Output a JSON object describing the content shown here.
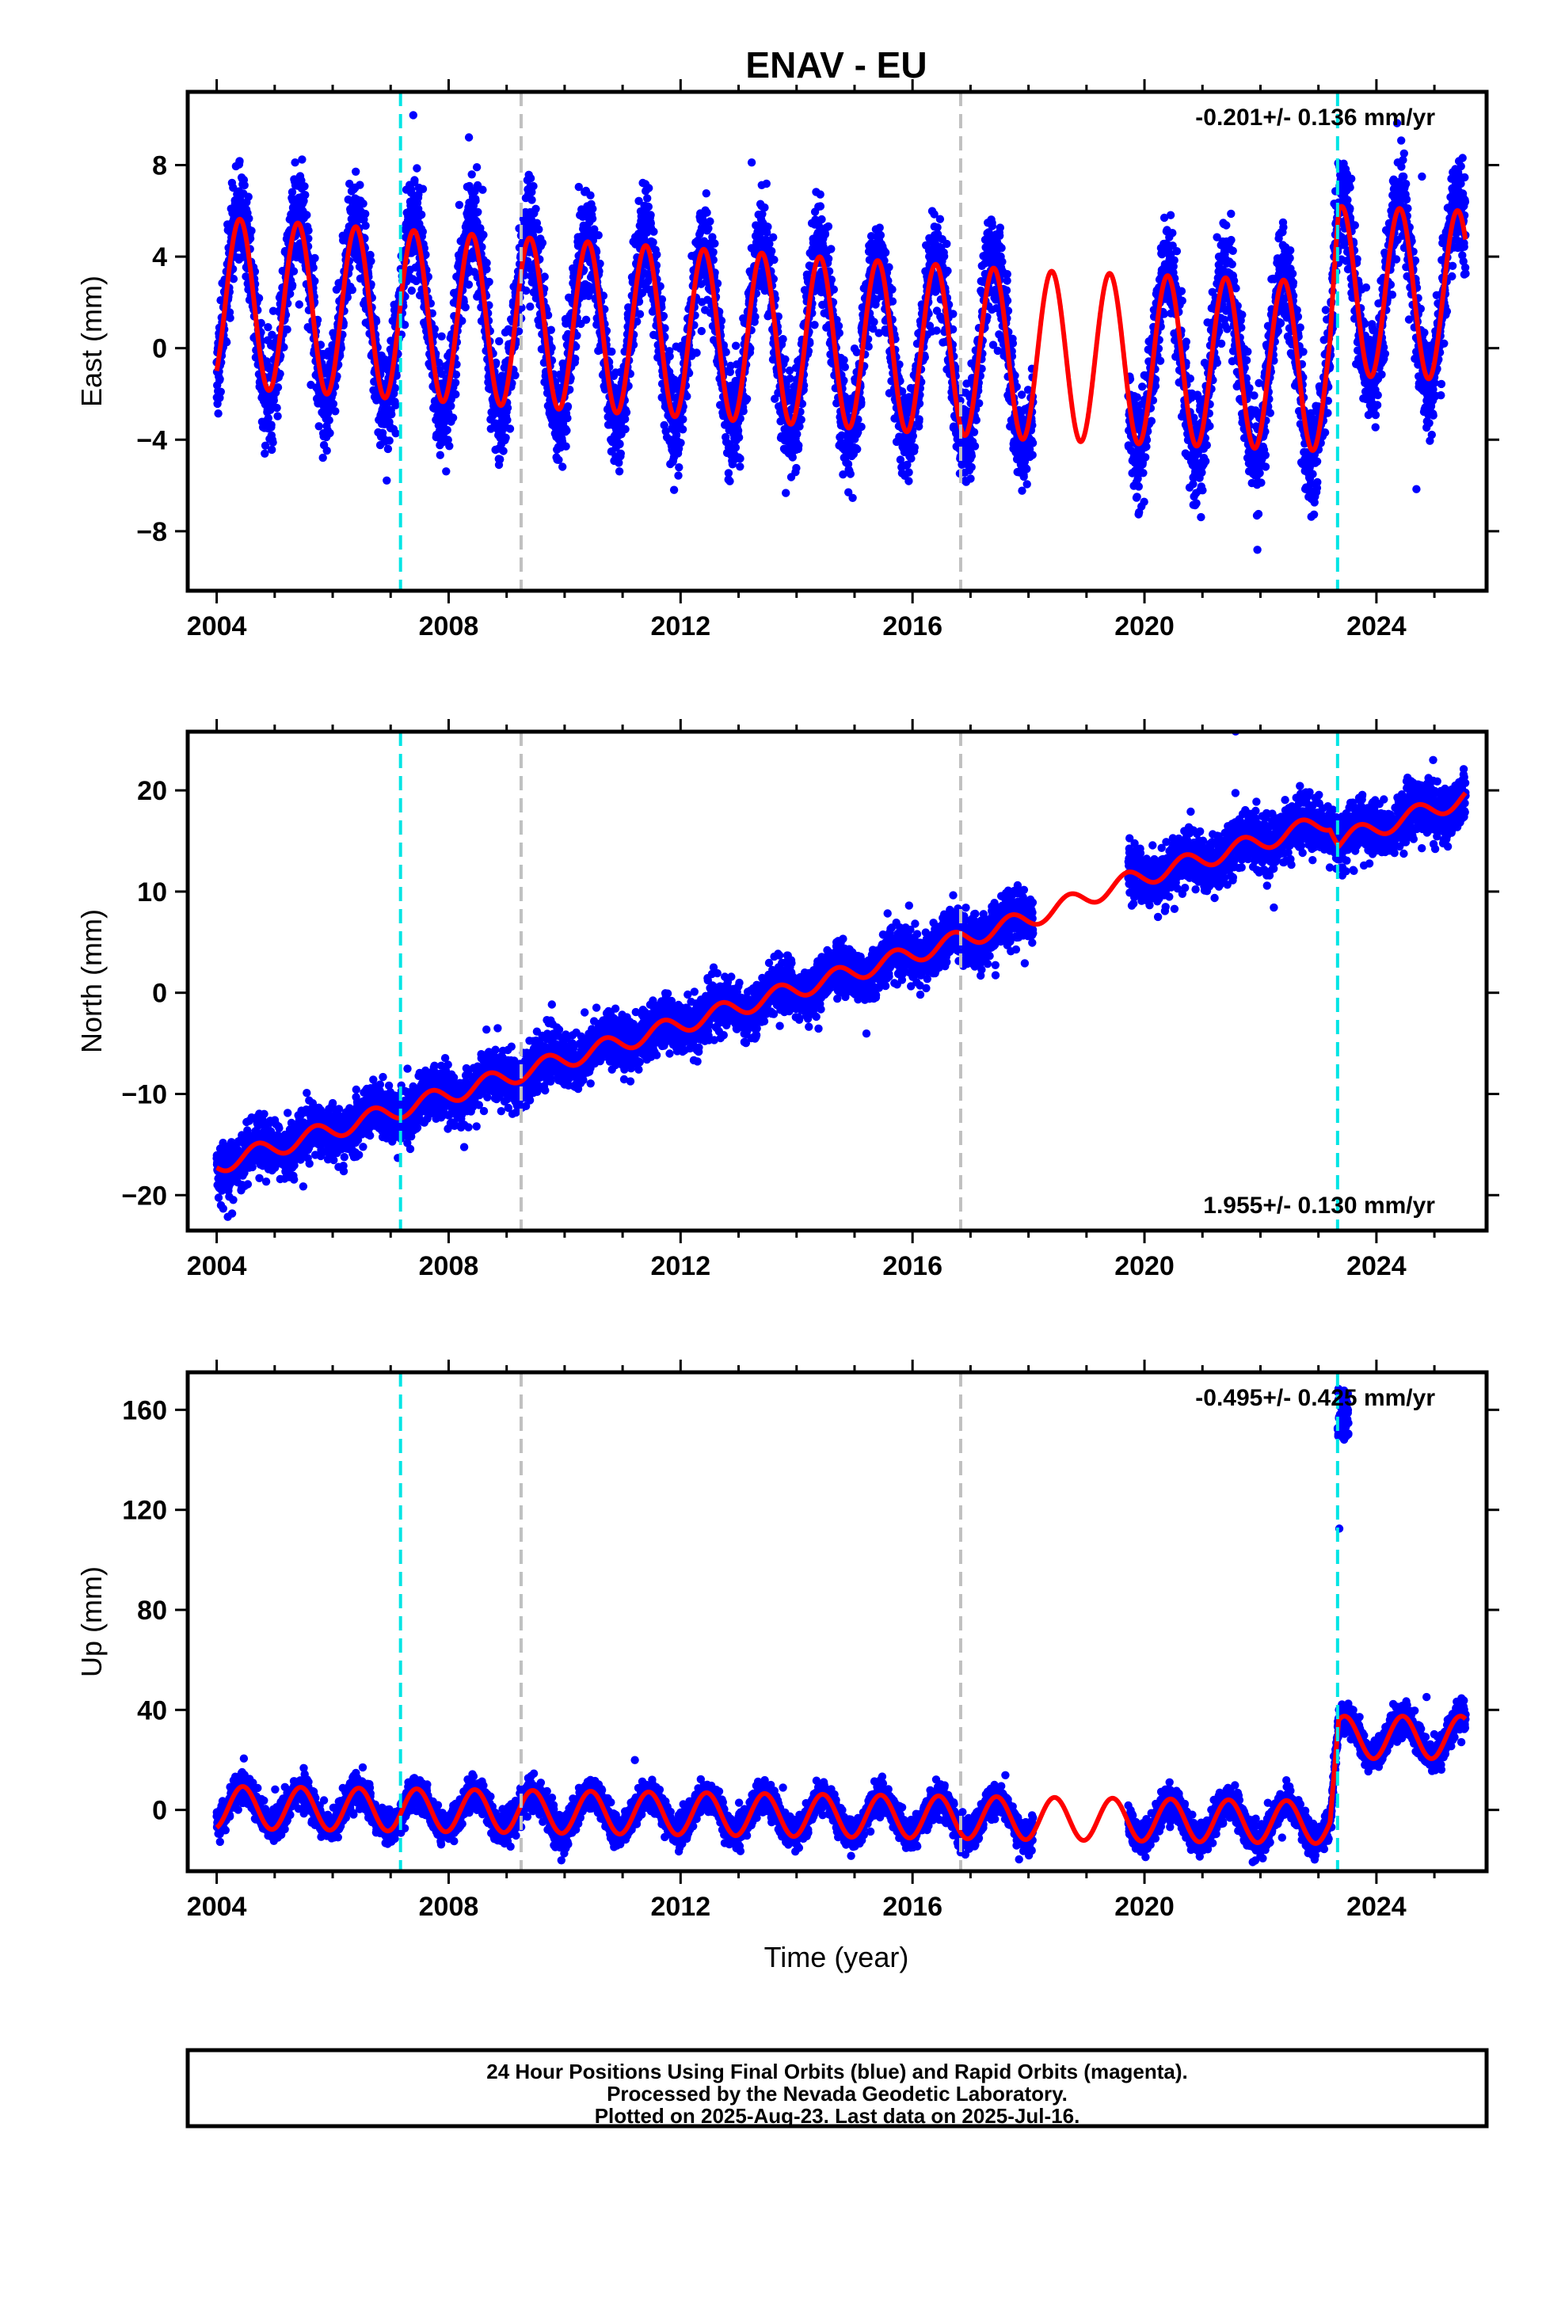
{
  "title": "ENAV - EU",
  "xlabel": "Time (year)",
  "footer": [
    "24 Hour Positions Using Final Orbits (blue) and Rapid Orbits (magenta).",
    "Processed by the Nevada Geodetic Laboratory.",
    "Plotted on 2025-Aug-23. Last data on 2025-Jul-16."
  ],
  "colors": {
    "points": "#0000ff",
    "model": "#ff0000",
    "equipment_change": "#00e5e5",
    "other_event": "#c0c0c0",
    "frame": "#000000"
  },
  "chart_data": [
    {
      "type": "scatter",
      "component": "east",
      "ylabel": "East (mm)",
      "rate": "-0.201+/- 0.136 mm/yr",
      "rate_position": "top-right",
      "xlim": [
        2003.5,
        2025.9
      ],
      "ylim": [
        -10.6,
        11.2
      ],
      "xticks": [
        2004,
        2008,
        2012,
        2016,
        2020,
        2024
      ],
      "yticks": [
        -8,
        -4,
        0,
        4,
        8
      ],
      "series": [
        {
          "kind": "daily_positions",
          "color": "blue",
          "x_range": [
            2004.0,
            2025.54
          ],
          "gaps": [
            [
              2018.08,
              2019.72
            ]
          ],
          "amplitude_mm": 4.0,
          "phase_peak_frac": 0.4,
          "scatter_sd_mm": 1.1,
          "level_mm": [
            [
              2004.0,
              2.0
            ],
            [
              2018.0,
              -0.3
            ],
            [
              2023.2,
              -0.8
            ],
            [
              2023.35,
              2.5
            ],
            [
              2025.54,
              2.3
            ]
          ]
        },
        {
          "kind": "model",
          "color": "red",
          "x_range": [
            2004.0,
            2025.54
          ],
          "amplitude_mm": 3.7,
          "phase_peak_frac": 0.4,
          "level_mm": [
            [
              2004.0,
              2.0
            ],
            [
              2018.0,
              -0.3
            ],
            [
              2023.2,
              -0.8
            ],
            [
              2023.35,
              2.5
            ],
            [
              2025.54,
              2.3
            ]
          ]
        }
      ],
      "events": [
        {
          "x": 2007.17,
          "type": "equipment"
        },
        {
          "x": 2009.25,
          "type": "other"
        },
        {
          "x": 2016.83,
          "type": "other"
        },
        {
          "x": 2023.33,
          "type": "equipment"
        }
      ]
    },
    {
      "type": "scatter",
      "component": "north",
      "ylabel": "North (mm)",
      "rate": "1.955+/- 0.130 mm/yr",
      "rate_position": "bottom-right",
      "xlim": [
        2003.5,
        2025.9
      ],
      "ylim": [
        -23.5,
        25.8
      ],
      "xticks": [
        2004,
        2008,
        2012,
        2016,
        2020,
        2024
      ],
      "yticks": [
        -20,
        -10,
        0,
        10,
        20
      ],
      "series": [
        {
          "kind": "daily_positions",
          "color": "blue",
          "x_range": [
            2004.0,
            2025.54
          ],
          "gaps": [
            [
              2018.08,
              2019.72
            ]
          ],
          "amplitude_mm": 0.9,
          "phase_peak_frac": 0.7,
          "scatter_sd_mm": 1.3,
          "level_mm": [
            [
              2004.0,
              -17.0
            ],
            [
              2018.0,
              7.3
            ],
            [
              2019.7,
              11.0
            ],
            [
              2023.2,
              17.0
            ],
            [
              2023.35,
              15.0
            ],
            [
              2025.54,
              19.3
            ]
          ]
        },
        {
          "kind": "model",
          "color": "red",
          "x_range": [
            2004.0,
            2025.54
          ],
          "amplitude_mm": 0.9,
          "phase_peak_frac": 0.7,
          "level_mm": [
            [
              2004.0,
              -17.0
            ],
            [
              2018.0,
              7.3
            ],
            [
              2019.7,
              11.0
            ],
            [
              2023.2,
              17.0
            ],
            [
              2023.35,
              15.0
            ],
            [
              2025.54,
              19.3
            ]
          ]
        }
      ],
      "events": [
        {
          "x": 2007.17,
          "type": "equipment"
        },
        {
          "x": 2009.25,
          "type": "other"
        },
        {
          "x": 2016.83,
          "type": "other"
        },
        {
          "x": 2023.33,
          "type": "equipment"
        }
      ]
    },
    {
      "type": "scatter",
      "component": "up",
      "ylabel": "Up (mm)",
      "rate": "-0.495+/- 0.425 mm/yr",
      "rate_position": "top-right",
      "xlim": [
        2003.5,
        2025.9
      ],
      "ylim": [
        -24.5,
        175
      ],
      "xticks": [
        2004,
        2008,
        2012,
        2016,
        2020,
        2024
      ],
      "yticks": [
        0,
        40,
        80,
        120,
        160
      ],
      "series": [
        {
          "kind": "daily_positions",
          "color": "blue",
          "x_range": [
            2004.0,
            2025.54
          ],
          "gaps": [
            [
              2018.08,
              2019.72
            ]
          ],
          "amplitude_mm": 7.5,
          "phase_peak_frac": 0.45,
          "scatter_sd_mm": 3.0,
          "level_mm": [
            [
              2004.0,
              1.0
            ],
            [
              2023.2,
              -5.0
            ],
            [
              2023.35,
              29.0
            ],
            [
              2025.54,
              29.0
            ]
          ]
        },
        {
          "kind": "model",
          "color": "red",
          "x_range": [
            2004.0,
            2025.54
          ],
          "amplitude_mm": 8.5,
          "phase_peak_frac": 0.45,
          "level_mm": [
            [
              2004.0,
              1.0
            ],
            [
              2023.2,
              -5.0
            ],
            [
              2023.35,
              29.0
            ],
            [
              2025.54,
              29.0
            ]
          ]
        }
      ],
      "outliers": {
        "x_range": [
          2023.33,
          2023.52
        ],
        "y_range": [
          148,
          170
        ],
        "count": 55,
        "isolated": [
          [
            2023.36,
            112.5
          ]
        ]
      },
      "events": [
        {
          "x": 2007.17,
          "type": "equipment"
        },
        {
          "x": 2009.25,
          "type": "other"
        },
        {
          "x": 2016.83,
          "type": "other"
        },
        {
          "x": 2023.33,
          "type": "equipment"
        }
      ]
    }
  ]
}
